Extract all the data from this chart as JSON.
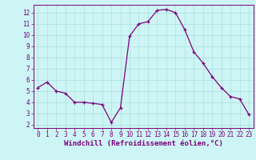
{
  "x": [
    0,
    1,
    2,
    3,
    4,
    5,
    6,
    7,
    8,
    9,
    10,
    11,
    12,
    13,
    14,
    15,
    16,
    17,
    18,
    19,
    20,
    21,
    22,
    23
  ],
  "y": [
    5.3,
    5.8,
    5.0,
    4.8,
    4.0,
    4.0,
    3.9,
    3.8,
    2.2,
    3.5,
    9.9,
    11.0,
    11.2,
    12.2,
    12.3,
    12.0,
    10.5,
    8.5,
    7.5,
    6.3,
    5.3,
    4.5,
    4.3,
    2.9
  ],
  "xlim": [
    -0.5,
    23.5
  ],
  "ylim": [
    1.7,
    12.7
  ],
  "yticks": [
    2,
    3,
    4,
    5,
    6,
    7,
    8,
    9,
    10,
    11,
    12
  ],
  "xticks": [
    0,
    1,
    2,
    3,
    4,
    5,
    6,
    7,
    8,
    9,
    10,
    11,
    12,
    13,
    14,
    15,
    16,
    17,
    18,
    19,
    20,
    21,
    22,
    23
  ],
  "xlabel": "Windchill (Refroidissement éolien,°C)",
  "line_color": "#7b0080",
  "marker": "+",
  "bg_color": "#cef5f5",
  "grid_color": "#aadddd",
  "spine_color": "#7b0080",
  "tick_color": "#7b0080",
  "label_color": "#7b0080",
  "tick_fontsize": 5.5,
  "xlabel_fontsize": 6.5,
  "markersize": 3.5,
  "linewidth": 0.9
}
